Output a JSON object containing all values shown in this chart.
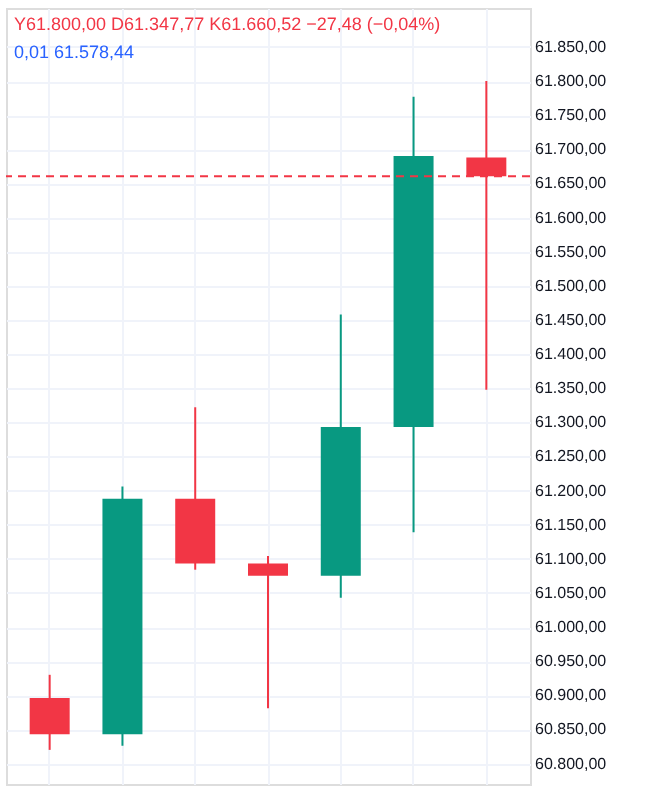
{
  "chart_data": {
    "type": "candlestick",
    "categories": [
      null,
      null,
      null,
      null,
      null,
      null,
      null
    ],
    "ohlc": [
      [
        60896,
        60930,
        60820,
        60843
      ],
      [
        60843,
        61206,
        60826,
        61188
      ],
      [
        61188,
        61322,
        61084,
        61093
      ],
      [
        61093,
        61104,
        60881,
        61075
      ],
      [
        61075,
        61458,
        61043,
        61293
      ],
      [
        61293,
        61777,
        61139,
        61690
      ],
      [
        61688,
        61800,
        61347.77,
        61660.52
      ]
    ],
    "colors": [
      "#f23645",
      "#089981",
      "#f23645",
      "#f23645",
      "#089981",
      "#089981",
      "#f23645"
    ],
    "ylim": [
      60770,
      61907
    ],
    "yticks": [
      {
        "value": 60800,
        "label": "60.800,00"
      },
      {
        "value": 60850,
        "label": "60.850,00"
      },
      {
        "value": 60900,
        "label": "60.900,00"
      },
      {
        "value": 60950,
        "label": "60.950,00"
      },
      {
        "value": 61000,
        "label": "61.000,00"
      },
      {
        "value": 61050,
        "label": "61.050,00"
      },
      {
        "value": 61100,
        "label": "61.100,00"
      },
      {
        "value": 61150,
        "label": "61.150,00"
      },
      {
        "value": 61200,
        "label": "61.200,00"
      },
      {
        "value": 61250,
        "label": "61.250,00"
      },
      {
        "value": 61300,
        "label": "61.300,00"
      },
      {
        "value": 61350,
        "label": "61.350,00"
      },
      {
        "value": 61400,
        "label": "61.400,00"
      },
      {
        "value": 61450,
        "label": "61.450,00"
      },
      {
        "value": 61500,
        "label": "61.500,00"
      },
      {
        "value": 61550,
        "label": "61.550,00"
      },
      {
        "value": 61600,
        "label": "61.600,00"
      },
      {
        "value": 61650,
        "label": "61.650,00"
      },
      {
        "value": 61700,
        "label": "61.700,00"
      },
      {
        "value": 61750,
        "label": "61.750,00"
      },
      {
        "value": 61800,
        "label": "61.800,00"
      },
      {
        "value": 61850,
        "label": "61.850,00"
      }
    ],
    "ref_lines": [
      {
        "axis": "y",
        "value": 61660.52,
        "color": "#f23645",
        "line_style": "dashed"
      }
    ],
    "annotations": [
      "Y61.800,00 D61.347,77 K61.660,52 −27,48 (−0,04%)",
      "0,01  61.578,44"
    ],
    "grid": true,
    "tick_labels": "y"
  }
}
